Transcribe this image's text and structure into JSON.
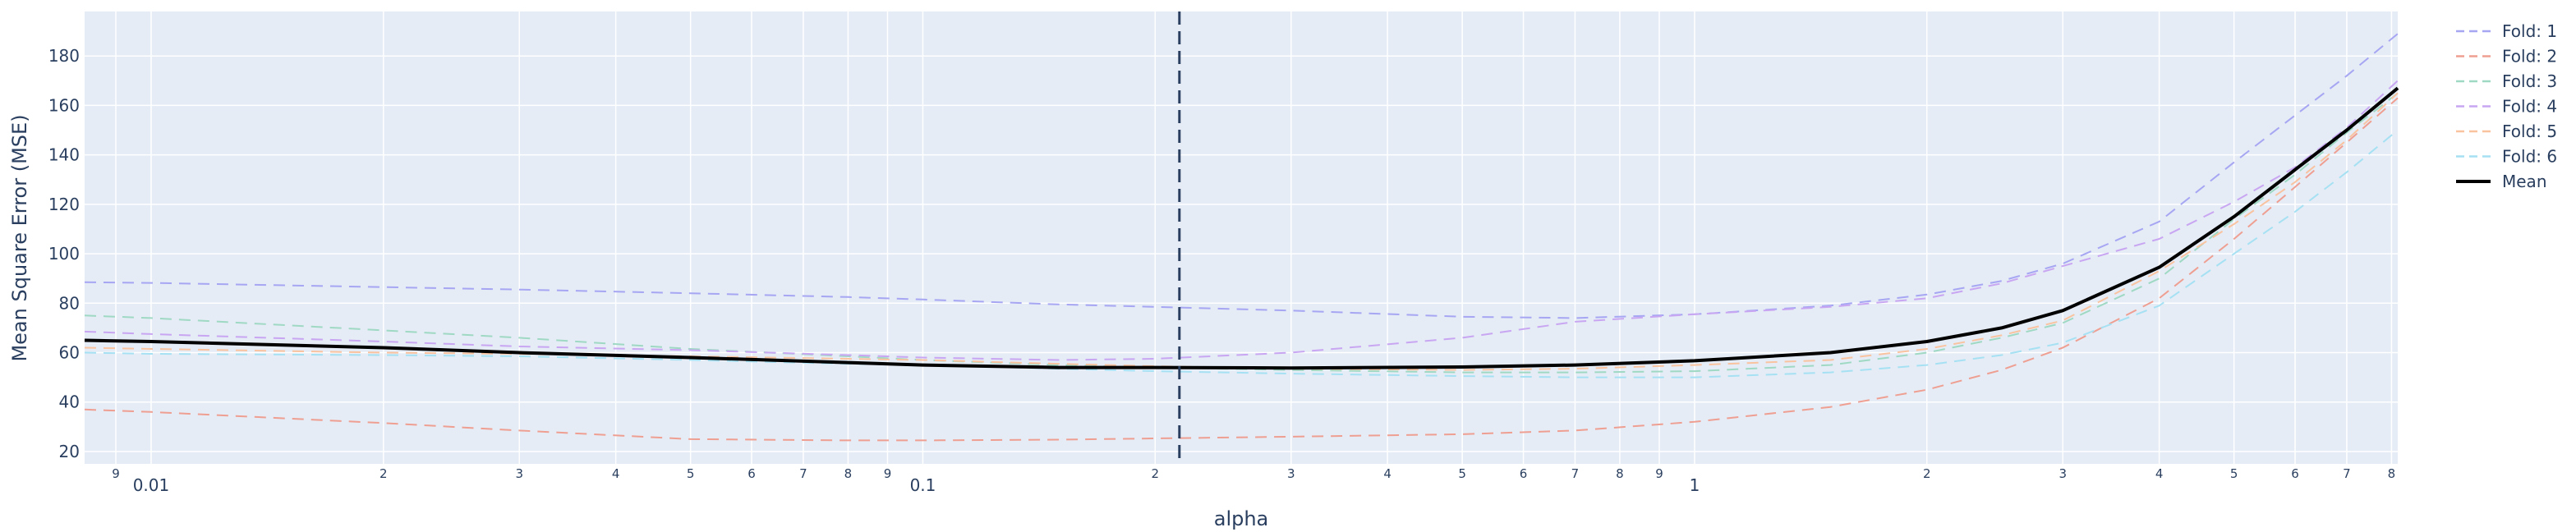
{
  "chart_data": {
    "type": "line",
    "xlabel": "alpha",
    "ylabel": "Mean Square Error (MSE)",
    "xscale": "log",
    "xlim": [
      0.0082,
      8.15
    ],
    "ylim": [
      15,
      198
    ],
    "grid": true,
    "legend_position": "right",
    "colors": {
      "plot_bg": "#e5ecf6",
      "grid": "#ffffff",
      "text": "#2a3f5f",
      "vline": "#2a3f5f"
    },
    "x_ticks_major": [
      {
        "value": 0.01,
        "label": "0.01"
      },
      {
        "value": 0.1,
        "label": "0.1"
      },
      {
        "value": 1,
        "label": "1"
      }
    ],
    "x_ticks_minor": [
      {
        "value": 0.009,
        "label": "9"
      },
      {
        "value": 0.02,
        "label": "2"
      },
      {
        "value": 0.03,
        "label": "3"
      },
      {
        "value": 0.04,
        "label": "4"
      },
      {
        "value": 0.05,
        "label": "5"
      },
      {
        "value": 0.06,
        "label": "6"
      },
      {
        "value": 0.07,
        "label": "7"
      },
      {
        "value": 0.08,
        "label": "8"
      },
      {
        "value": 0.09,
        "label": "9"
      },
      {
        "value": 0.2,
        "label": "2"
      },
      {
        "value": 0.3,
        "label": "3"
      },
      {
        "value": 0.4,
        "label": "4"
      },
      {
        "value": 0.5,
        "label": "5"
      },
      {
        "value": 0.6,
        "label": "6"
      },
      {
        "value": 0.7,
        "label": "7"
      },
      {
        "value": 0.8,
        "label": "8"
      },
      {
        "value": 0.9,
        "label": "9"
      },
      {
        "value": 2,
        "label": "2"
      },
      {
        "value": 3,
        "label": "3"
      },
      {
        "value": 4,
        "label": "4"
      },
      {
        "value": 5,
        "label": "5"
      },
      {
        "value": 6,
        "label": "6"
      },
      {
        "value": 7,
        "label": "7"
      },
      {
        "value": 8,
        "label": "8"
      }
    ],
    "y_ticks": [
      {
        "value": 20,
        "label": "20"
      },
      {
        "value": 40,
        "label": "40"
      },
      {
        "value": 60,
        "label": "60"
      },
      {
        "value": 80,
        "label": "80"
      },
      {
        "value": 100,
        "label": "100"
      },
      {
        "value": 120,
        "label": "120"
      },
      {
        "value": 140,
        "label": "140"
      },
      {
        "value": 160,
        "label": "160"
      },
      {
        "value": 180,
        "label": "180"
      }
    ],
    "vline_x": 0.215,
    "x": [
      0.0082,
      0.01,
      0.02,
      0.03,
      0.05,
      0.08,
      0.1,
      0.15,
      0.2,
      0.3,
      0.5,
      0.7,
      1.0,
      1.5,
      2.0,
      2.5,
      3.0,
      4.0,
      5.0,
      6.0,
      7.0,
      8.15
    ],
    "series": [
      {
        "name": "Fold: 1",
        "color": "#a6a6f3",
        "dash": true,
        "width": 2,
        "values": [
          88.5,
          88.2,
          86.5,
          85.5,
          84.0,
          82.5,
          81.5,
          79.5,
          78.5,
          77.0,
          74.5,
          74.0,
          75.5,
          79.0,
          83.5,
          89.0,
          96.0,
          113.0,
          137.0,
          156.0,
          172.0,
          189.0
        ]
      },
      {
        "name": "Fold: 2",
        "color": "#ef9f91",
        "dash": true,
        "width": 2,
        "values": [
          37.0,
          36.0,
          31.5,
          28.5,
          25.0,
          24.5,
          24.5,
          24.8,
          25.3,
          26.0,
          27.0,
          28.5,
          32.0,
          38.0,
          45.0,
          53.0,
          62.0,
          82.0,
          106.0,
          127.0,
          145.0,
          163.0
        ]
      },
      {
        "name": "Fold: 3",
        "color": "#9fd9c4",
        "dash": true,
        "width": 2,
        "values": [
          75.0,
          74.0,
          69.0,
          66.0,
          61.5,
          58.5,
          57.0,
          55.0,
          54.0,
          53.0,
          52.0,
          52.0,
          52.5,
          55.0,
          60.0,
          66.0,
          72.0,
          90.0,
          114.0,
          132.0,
          149.0,
          165.0
        ]
      },
      {
        "name": "Fold: 4",
        "color": "#c9a6f2",
        "dash": true,
        "width": 2,
        "values": [
          68.5,
          67.5,
          64.5,
          62.5,
          61.0,
          59.0,
          58.0,
          57.0,
          57.5,
          60.0,
          66.0,
          72.5,
          75.5,
          78.5,
          82.0,
          88.0,
          95.0,
          106.0,
          121.0,
          135.0,
          151.0,
          170.0
        ]
      },
      {
        "name": "Fold: 5",
        "color": "#f9c3a0",
        "dash": true,
        "width": 2,
        "values": [
          62.0,
          61.5,
          60.0,
          59.5,
          58.5,
          57.5,
          57.0,
          55.5,
          54.5,
          53.5,
          53.0,
          53.5,
          55.0,
          57.0,
          61.5,
          67.0,
          73.0,
          93.0,
          112.0,
          129.0,
          146.0,
          165.0
        ]
      },
      {
        "name": "Fold: 6",
        "color": "#a6e1f3",
        "dash": true,
        "width": 2,
        "values": [
          60.0,
          59.5,
          59.0,
          58.5,
          57.0,
          55.5,
          55.0,
          53.5,
          52.5,
          51.5,
          50.5,
          50.0,
          50.0,
          52.0,
          55.0,
          59.0,
          64.0,
          79.0,
          100.0,
          117.0,
          133.0,
          150.0
        ]
      },
      {
        "name": "Mean",
        "color": "#000000",
        "dash": false,
        "width": 4,
        "values": [
          65.0,
          64.5,
          62.0,
          60.0,
          58.0,
          56.0,
          55.0,
          54.0,
          54.0,
          53.8,
          54.2,
          55.0,
          56.7,
          60.0,
          64.5,
          70.0,
          77.0,
          94.5,
          115.0,
          134.0,
          150.0,
          167.0
        ]
      }
    ]
  }
}
